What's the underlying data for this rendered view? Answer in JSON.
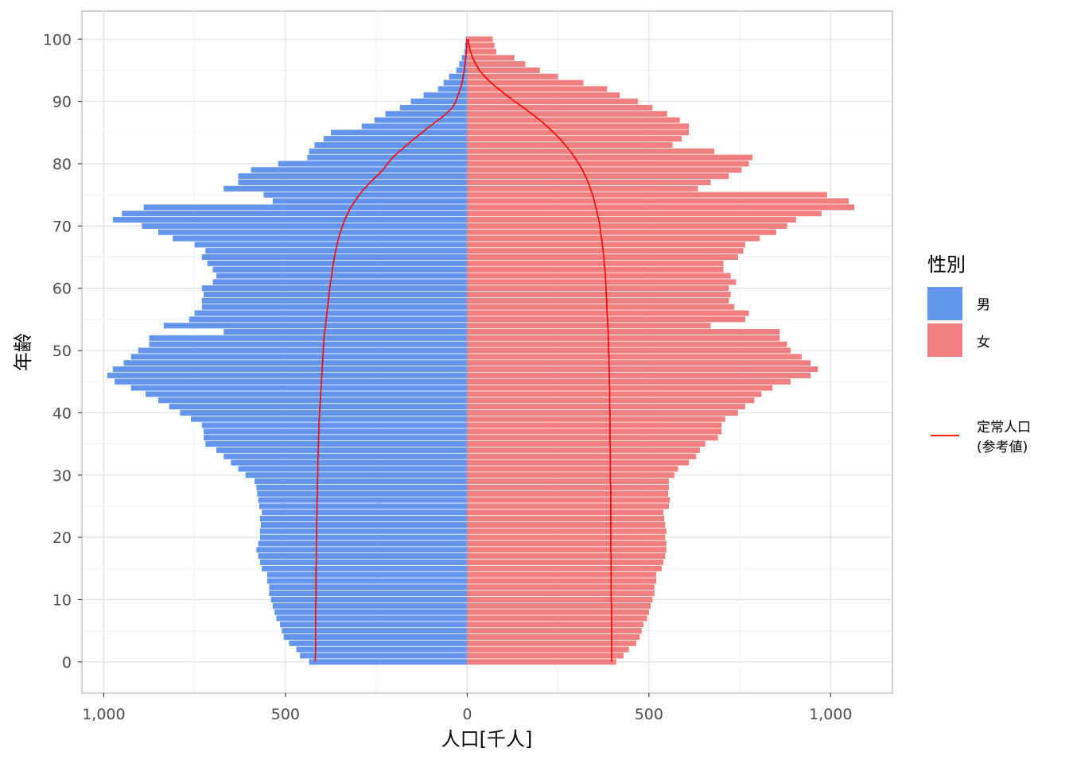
{
  "chart_data": {
    "type": "bar",
    "orientation": "horizontal",
    "style": "population-pyramid",
    "xlabel": "人口[千人]",
    "ylabel": "年齢",
    "xlim": [
      -1060,
      1170
    ],
    "ylim": [
      -5,
      104.5
    ],
    "x_ticks": [
      -1000,
      -500,
      0,
      500,
      1000
    ],
    "x_tick_labels": [
      "1,000",
      "500",
      "0",
      "500",
      "1,000"
    ],
    "x_minor_ticks": [
      -750,
      -250,
      250,
      750
    ],
    "y_ticks": [
      0,
      10,
      20,
      30,
      40,
      50,
      60,
      70,
      80,
      90,
      100
    ],
    "y_tick_labels": [
      "0",
      "10",
      "20",
      "30",
      "40",
      "50",
      "60",
      "70",
      "80",
      "90",
      "100"
    ],
    "y_minor_ticks": [
      5,
      15,
      25,
      35,
      45,
      55,
      65,
      75,
      85,
      95
    ],
    "grid": true,
    "legend": {
      "title": "性別",
      "position": "right",
      "items": [
        {
          "label": "男",
          "color": "#6495ED"
        },
        {
          "label": "女",
          "color": "#F08080"
        }
      ],
      "line_item": {
        "label_lines": [
          "定常人口",
          "(参考値)"
        ],
        "color": "#FF0000"
      }
    },
    "ages": [
      0,
      1,
      2,
      3,
      4,
      5,
      6,
      7,
      8,
      9,
      10,
      11,
      12,
      13,
      14,
      15,
      16,
      17,
      18,
      19,
      20,
      21,
      22,
      23,
      24,
      25,
      26,
      27,
      28,
      29,
      30,
      31,
      32,
      33,
      34,
      35,
      36,
      37,
      38,
      39,
      40,
      41,
      42,
      43,
      44,
      45,
      46,
      47,
      48,
      49,
      50,
      51,
      52,
      53,
      54,
      55,
      56,
      57,
      58,
      59,
      60,
      61,
      62,
      63,
      64,
      65,
      66,
      67,
      68,
      69,
      70,
      71,
      72,
      73,
      74,
      75,
      76,
      77,
      78,
      79,
      80,
      81,
      82,
      83,
      84,
      85,
      86,
      87,
      88,
      89,
      90,
      91,
      92,
      93,
      94,
      95,
      96,
      97,
      98,
      99,
      100
    ],
    "series": [
      {
        "name": "男",
        "color": "#6495ED",
        "values": [
          435,
          460,
          470,
          490,
          505,
          510,
          515,
          525,
          530,
          535,
          540,
          545,
          545,
          550,
          550,
          565,
          570,
          575,
          580,
          575,
          570,
          570,
          568,
          570,
          565,
          572,
          575,
          578,
          580,
          585,
          610,
          630,
          650,
          670,
          690,
          720,
          725,
          725,
          730,
          760,
          790,
          820,
          850,
          885,
          925,
          970,
          990,
          975,
          945,
          925,
          905,
          875,
          875,
          670,
          835,
          765,
          750,
          730,
          730,
          725,
          730,
          700,
          690,
          700,
          715,
          730,
          720,
          750,
          810,
          850,
          895,
          975,
          950,
          890,
          535,
          560,
          670,
          630,
          630,
          595,
          520,
          440,
          435,
          420,
          395,
          375,
          290,
          255,
          225,
          185,
          155,
          120,
          80,
          65,
          50,
          30,
          22,
          15,
          8,
          6,
          4
        ]
      },
      {
        "name": "女",
        "color": "#F08080",
        "values": [
          410,
          430,
          445,
          465,
          475,
          480,
          485,
          495,
          500,
          505,
          510,
          515,
          515,
          520,
          520,
          535,
          540,
          545,
          548,
          548,
          545,
          548,
          545,
          542,
          540,
          555,
          558,
          553,
          555,
          555,
          570,
          580,
          610,
          630,
          640,
          655,
          690,
          700,
          700,
          710,
          745,
          765,
          790,
          810,
          840,
          890,
          945,
          965,
          945,
          920,
          890,
          880,
          860,
          860,
          670,
          765,
          775,
          735,
          720,
          725,
          720,
          740,
          725,
          705,
          705,
          745,
          760,
          765,
          805,
          850,
          880,
          905,
          975,
          1065,
          1050,
          990,
          635,
          670,
          720,
          755,
          775,
          785,
          680,
          565,
          590,
          610,
          610,
          585,
          550,
          510,
          470,
          420,
          385,
          320,
          250,
          200,
          160,
          130,
          80,
          75,
          70
        ]
      }
    ],
    "steady_population": {
      "name": "定常人口(参考値)",
      "color": "#FF0000",
      "male": [
        418,
        418,
        417,
        417,
        417,
        417,
        417,
        417,
        417,
        417,
        416,
        416,
        416,
        416,
        416,
        416,
        415,
        415,
        415,
        415,
        414,
        414,
        414,
        414,
        413,
        413,
        413,
        412,
        412,
        412,
        411,
        411,
        411,
        410,
        410,
        409,
        409,
        408,
        408,
        407,
        406,
        405,
        404,
        403,
        402,
        401,
        400,
        399,
        398,
        397,
        396,
        395,
        394,
        392,
        390,
        388,
        386,
        384,
        382,
        380,
        378,
        376,
        373,
        371,
        368,
        365,
        362,
        358,
        354,
        349,
        343,
        337,
        329,
        320,
        309,
        297,
        283,
        267,
        249,
        232,
        219,
        205,
        186,
        166,
        146,
        124,
        103,
        80,
        58,
        41,
        31,
        25,
        19,
        14,
        11,
        8,
        6,
        4,
        2,
        1,
        1
      ],
      "female": [
        397,
        397,
        397,
        397,
        397,
        397,
        397,
        397,
        397,
        397,
        396,
        396,
        396,
        396,
        396,
        396,
        396,
        396,
        395,
        395,
        395,
        395,
        395,
        395,
        395,
        395,
        395,
        395,
        395,
        394,
        394,
        394,
        394,
        394,
        394,
        393,
        393,
        393,
        393,
        393,
        393,
        392,
        392,
        392,
        392,
        391,
        391,
        391,
        390,
        390,
        389,
        389,
        388,
        388,
        387,
        386,
        385,
        384,
        384,
        383,
        382,
        381,
        380,
        379,
        377,
        376,
        374,
        372,
        370,
        367,
        365,
        362,
        358,
        354,
        350,
        345,
        339,
        333,
        325,
        317,
        307,
        296,
        284,
        270,
        255,
        238,
        220,
        200,
        178,
        155,
        131,
        108,
        86,
        66,
        48,
        34,
        24,
        15,
        9,
        5,
        3
      ]
    }
  }
}
